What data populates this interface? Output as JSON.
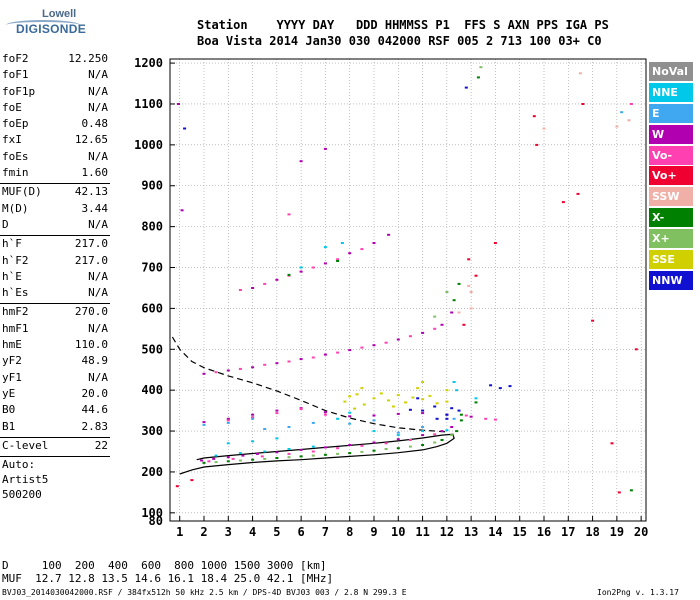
{
  "logo": {
    "line1": "Lowell",
    "line2": "DIGISONDE"
  },
  "header": {
    "labels": "Station    YYYY DAY   DDD HHMMSS P1  FFS S AXN PPS IGA PS",
    "values": "Boa Vista 2014 Jan30 030 042000 RSF 005 2 713 100 03+ C0"
  },
  "params": {
    "group1": [
      {
        "label": "foF2",
        "value": "12.250"
      },
      {
        "label": "foF1",
        "value": "N/A"
      },
      {
        "label": "foF1p",
        "value": "N/A"
      },
      {
        "label": "foE",
        "value": "N/A"
      },
      {
        "label": "foEp",
        "value": "0.48"
      },
      {
        "label": "fxI",
        "value": "12.65"
      },
      {
        "label": "foEs",
        "value": "N/A"
      },
      {
        "label": "fmin",
        "value": "1.60"
      }
    ],
    "group2": [
      {
        "label": "MUF(D)",
        "value": "42.13"
      },
      {
        "label": "M(D)",
        "value": "3.44"
      },
      {
        "label": "D",
        "value": "N/A"
      }
    ],
    "group3": [
      {
        "label": "h`F",
        "value": "217.0"
      },
      {
        "label": "h`F2",
        "value": "217.0"
      },
      {
        "label": "h`E",
        "value": "N/A"
      },
      {
        "label": "h`Es",
        "value": "N/A"
      }
    ],
    "group4": [
      {
        "label": "hmF2",
        "value": "270.0"
      },
      {
        "label": "hmF1",
        "value": "N/A"
      },
      {
        "label": "hmE",
        "value": "110.0"
      },
      {
        "label": "yF2",
        "value": "48.9"
      },
      {
        "label": "yF1",
        "value": "N/A"
      },
      {
        "label": "yE",
        "value": "20.0"
      },
      {
        "label": "B0",
        "value": "44.6"
      },
      {
        "label": "B1",
        "value": "2.83"
      }
    ],
    "group5": [
      {
        "label": "C-level",
        "value": "22"
      }
    ],
    "auto": [
      "Auto:",
      "Artist5",
      "500200"
    ]
  },
  "legend": [
    {
      "label": "NoVal",
      "color": "#909090"
    },
    {
      "label": "NNE",
      "color": "#00c8e8"
    },
    {
      "label": "E",
      "color": "#3fa8f0"
    },
    {
      "label": "W",
      "color": "#b000b0"
    },
    {
      "label": "Vo-",
      "color": "#ff40b0"
    },
    {
      "label": "Vo+",
      "color": "#f00030"
    },
    {
      "label": "SSW",
      "color": "#f0b0a8"
    },
    {
      "label": "X-",
      "color": "#008000"
    },
    {
      "label": "X+",
      "color": "#80c060"
    },
    {
      "label": "SSE",
      "color": "#d0d000"
    },
    {
      "label": "NNW",
      "color": "#1010d0"
    }
  ],
  "bottom": {
    "d_row": "D     100  200  400  600  800 1000 1500 3000 [km]",
    "muf_row": "MUF  12.7 12.8 13.5 14.6 16.1 18.4 25.0 42.1 [MHz]",
    "file_info": "BVJ03_2014030042000.RSF / 384fx512h 50 kHz 2.5 km / DPS-4D BVJ03 003 / 2.8 N 299.3 E",
    "version": "Ion2Png v. 1.3.17"
  },
  "chart_data": {
    "type": "scatter",
    "title": "",
    "xlabel": "",
    "ylabel": "",
    "xlim": [
      0.6,
      20.2
    ],
    "ylim": [
      80,
      1210
    ],
    "x_ticks": [
      1,
      2,
      3,
      4,
      5,
      6,
      7,
      8,
      9,
      10,
      11,
      12,
      13,
      14,
      15,
      16,
      17,
      18,
      19,
      20
    ],
    "y_ticks": [
      80,
      100,
      200,
      300,
      400,
      500,
      600,
      700,
      800,
      900,
      1000,
      1100,
      1200
    ],
    "grid": true,
    "legend_position": "right",
    "series": [
      {
        "name": "W",
        "color": "#b000b0",
        "points": [
          [
            1.9,
            228
          ],
          [
            2.4,
            232
          ],
          [
            3,
            236
          ],
          [
            3.6,
            240
          ],
          [
            4.2,
            244
          ],
          [
            5,
            248
          ],
          [
            6,
            254
          ],
          [
            7,
            260
          ],
          [
            8,
            266
          ],
          [
            9,
            272
          ],
          [
            10,
            280
          ],
          [
            11,
            290
          ],
          [
            11.8,
            300
          ],
          [
            12.2,
            310
          ],
          [
            2,
            440
          ],
          [
            3,
            448
          ],
          [
            4,
            456
          ],
          [
            5,
            466
          ],
          [
            6,
            476
          ],
          [
            7,
            487
          ],
          [
            8,
            498
          ],
          [
            9,
            510
          ],
          [
            10,
            524
          ],
          [
            11,
            540
          ],
          [
            11.8,
            560
          ],
          [
            12.2,
            590
          ],
          [
            2,
            322
          ],
          [
            3,
            330
          ],
          [
            4,
            340
          ],
          [
            5,
            350
          ],
          [
            6,
            356
          ],
          [
            7,
            346
          ],
          [
            8,
            336
          ],
          [
            9,
            338
          ],
          [
            10,
            342
          ],
          [
            11,
            344
          ],
          [
            12,
            340
          ],
          [
            13,
            335
          ],
          [
            4,
            650
          ],
          [
            5,
            670
          ],
          [
            6,
            690
          ],
          [
            7,
            710
          ],
          [
            8,
            735
          ],
          [
            9,
            760
          ],
          [
            9.6,
            780
          ],
          [
            6,
            960
          ],
          [
            7,
            990
          ],
          [
            0.95,
            1100
          ],
          [
            1.1,
            840
          ]
        ]
      },
      {
        "name": "Vo-",
        "color": "#ff40b0",
        "points": [
          [
            2.2,
            226
          ],
          [
            3.2,
            232
          ],
          [
            4.4,
            238
          ],
          [
            5.5,
            244
          ],
          [
            6.5,
            250
          ],
          [
            7.5,
            258
          ],
          [
            8.5,
            264
          ],
          [
            9.5,
            270
          ],
          [
            10.5,
            278
          ],
          [
            11.5,
            292
          ],
          [
            2.5,
            444
          ],
          [
            3.5,
            452
          ],
          [
            4.5,
            462
          ],
          [
            5.5,
            470
          ],
          [
            6.5,
            480
          ],
          [
            7.5,
            492
          ],
          [
            8.5,
            504
          ],
          [
            9.5,
            516
          ],
          [
            10.5,
            532
          ],
          [
            11.5,
            550
          ],
          [
            3,
            326
          ],
          [
            4,
            334
          ],
          [
            5,
            344
          ],
          [
            6,
            354
          ],
          [
            7,
            340
          ],
          [
            12.8,
            338
          ],
          [
            13.6,
            330
          ],
          [
            14,
            328
          ],
          [
            3.5,
            645
          ],
          [
            4.5,
            660
          ],
          [
            5.5,
            680
          ],
          [
            6.5,
            700
          ],
          [
            7.5,
            720
          ],
          [
            8.5,
            745
          ],
          [
            5.5,
            830
          ],
          [
            19.6,
            1100
          ]
        ]
      },
      {
        "name": "Vo+",
        "color": "#f00030",
        "points": [
          [
            0.9,
            165
          ],
          [
            1.5,
            180
          ],
          [
            12.9,
            720
          ],
          [
            13.2,
            680
          ],
          [
            12.7,
            560
          ],
          [
            14,
            760
          ],
          [
            15.7,
            1000
          ],
          [
            15.6,
            1070
          ],
          [
            16.8,
            860
          ],
          [
            17.4,
            880
          ],
          [
            18,
            570
          ],
          [
            18.8,
            270
          ],
          [
            19.1,
            150
          ],
          [
            17.6,
            1100
          ],
          [
            19.8,
            500
          ]
        ]
      },
      {
        "name": "NNE",
        "color": "#00c8e8",
        "points": [
          [
            2.5,
            240
          ],
          [
            3.5,
            246
          ],
          [
            4.5,
            250
          ],
          [
            5.5,
            256
          ],
          [
            6.5,
            262
          ],
          [
            7.5,
            330
          ],
          [
            8,
            345
          ],
          [
            9,
            300
          ],
          [
            10,
            290
          ],
          [
            11,
            300
          ],
          [
            12,
            302
          ],
          [
            12.3,
            420
          ],
          [
            12.4,
            400
          ],
          [
            6,
            700
          ],
          [
            7,
            750
          ],
          [
            7.7,
            760
          ],
          [
            3,
            270
          ],
          [
            4,
            275
          ],
          [
            5,
            282
          ],
          [
            13.2,
            380
          ]
        ]
      },
      {
        "name": "E",
        "color": "#3fa8f0",
        "points": [
          [
            2,
            315
          ],
          [
            3,
            320
          ],
          [
            4,
            330
          ],
          [
            8,
            318
          ],
          [
            9,
            326
          ],
          [
            10,
            296
          ],
          [
            11,
            310
          ],
          [
            4.5,
            305
          ],
          [
            5.5,
            310
          ],
          [
            6.5,
            320
          ],
          [
            12.3,
            330
          ],
          [
            19.2,
            1080
          ]
        ]
      },
      {
        "name": "X-",
        "color": "#008000",
        "points": [
          [
            2,
            222
          ],
          [
            3,
            226
          ],
          [
            4,
            230
          ],
          [
            5,
            234
          ],
          [
            6,
            238
          ],
          [
            7,
            242
          ],
          [
            8,
            246
          ],
          [
            9,
            252
          ],
          [
            10,
            258
          ],
          [
            11,
            266
          ],
          [
            11.8,
            278
          ],
          [
            12.4,
            300
          ],
          [
            12.6,
            326
          ],
          [
            12.6,
            340
          ],
          [
            12.3,
            620
          ],
          [
            12.5,
            660
          ],
          [
            5.5,
            682
          ],
          [
            7.5,
            716
          ],
          [
            13.3,
            1165
          ],
          [
            13.2,
            370
          ],
          [
            19.6,
            155
          ]
        ]
      },
      {
        "name": "X+",
        "color": "#80c060",
        "points": [
          [
            2.5,
            224
          ],
          [
            3.5,
            228
          ],
          [
            4.5,
            232
          ],
          [
            5.5,
            236
          ],
          [
            6.5,
            240
          ],
          [
            7.5,
            244
          ],
          [
            8.5,
            249
          ],
          [
            9.5,
            256
          ],
          [
            10.5,
            262
          ],
          [
            11.5,
            272
          ],
          [
            12.2,
            290
          ],
          [
            11.5,
            580
          ],
          [
            12,
            640
          ],
          [
            13.4,
            1190
          ]
        ]
      },
      {
        "name": "SSE",
        "color": "#d0d000",
        "points": [
          [
            7.8,
            372
          ],
          [
            8,
            385
          ],
          [
            8.3,
            390
          ],
          [
            8.6,
            365
          ],
          [
            9,
            380
          ],
          [
            9.3,
            392
          ],
          [
            9.6,
            375
          ],
          [
            10,
            388
          ],
          [
            10.3,
            370
          ],
          [
            10.6,
            382
          ],
          [
            11,
            378
          ],
          [
            11.3,
            386
          ],
          [
            11.6,
            368
          ],
          [
            12,
            372
          ],
          [
            12,
            400
          ],
          [
            8.2,
            355
          ],
          [
            9.8,
            360
          ],
          [
            8.5,
            405
          ],
          [
            10.8,
            405
          ],
          [
            11,
            420
          ]
        ]
      },
      {
        "name": "NNW",
        "color": "#1010d0",
        "points": [
          [
            11,
            350
          ],
          [
            11.5,
            360
          ],
          [
            12,
            340
          ],
          [
            12.2,
            356
          ],
          [
            12.5,
            350
          ],
          [
            10.5,
            352
          ],
          [
            12,
            330
          ],
          [
            14.2,
            405
          ],
          [
            13.8,
            412
          ],
          [
            14.6,
            410
          ],
          [
            11.6,
            330
          ],
          [
            12.8,
            1140
          ],
          [
            1.2,
            1040
          ],
          [
            10.8,
            380
          ]
        ]
      },
      {
        "name": "SSW",
        "color": "#f0b0a8",
        "points": [
          [
            12.9,
            655
          ],
          [
            13,
            640
          ],
          [
            16,
            1040
          ],
          [
            17.5,
            1175
          ],
          [
            19.5,
            1060
          ],
          [
            19,
            1045
          ],
          [
            12.5,
            590
          ],
          [
            13,
            600
          ]
        ]
      }
    ],
    "lines": [
      {
        "style": "solid",
        "color": "#000000",
        "points": [
          [
            1,
            195
          ],
          [
            1.5,
            205
          ],
          [
            2,
            212
          ],
          [
            3,
            218
          ],
          [
            4,
            223
          ],
          [
            5,
            227
          ],
          [
            6,
            230
          ],
          [
            7,
            234
          ],
          [
            8,
            238
          ],
          [
            9,
            242
          ],
          [
            10,
            247
          ],
          [
            11,
            254
          ],
          [
            11.6,
            262
          ],
          [
            12,
            270
          ],
          [
            12.3,
            282
          ],
          [
            12.25,
            292
          ],
          [
            11.8,
            290
          ],
          [
            11,
            283
          ],
          [
            10,
            276
          ],
          [
            9,
            270
          ],
          [
            8,
            265
          ],
          [
            7,
            260
          ],
          [
            6,
            255
          ],
          [
            5,
            250
          ],
          [
            4,
            245
          ],
          [
            3,
            240
          ],
          [
            2,
            234
          ],
          [
            1.7,
            230
          ]
        ]
      },
      {
        "style": "dashed",
        "color": "#000000",
        "points": [
          [
            0.7,
            530
          ],
          [
            1,
            500
          ],
          [
            1.5,
            470
          ],
          [
            2,
            455
          ],
          [
            2.5,
            445
          ],
          [
            3,
            435
          ],
          [
            4,
            418
          ],
          [
            5,
            398
          ],
          [
            6,
            375
          ],
          [
            7,
            350
          ],
          [
            8,
            332
          ],
          [
            9,
            318
          ],
          [
            10,
            308
          ],
          [
            11,
            302
          ],
          [
            12,
            298
          ]
        ]
      }
    ]
  }
}
